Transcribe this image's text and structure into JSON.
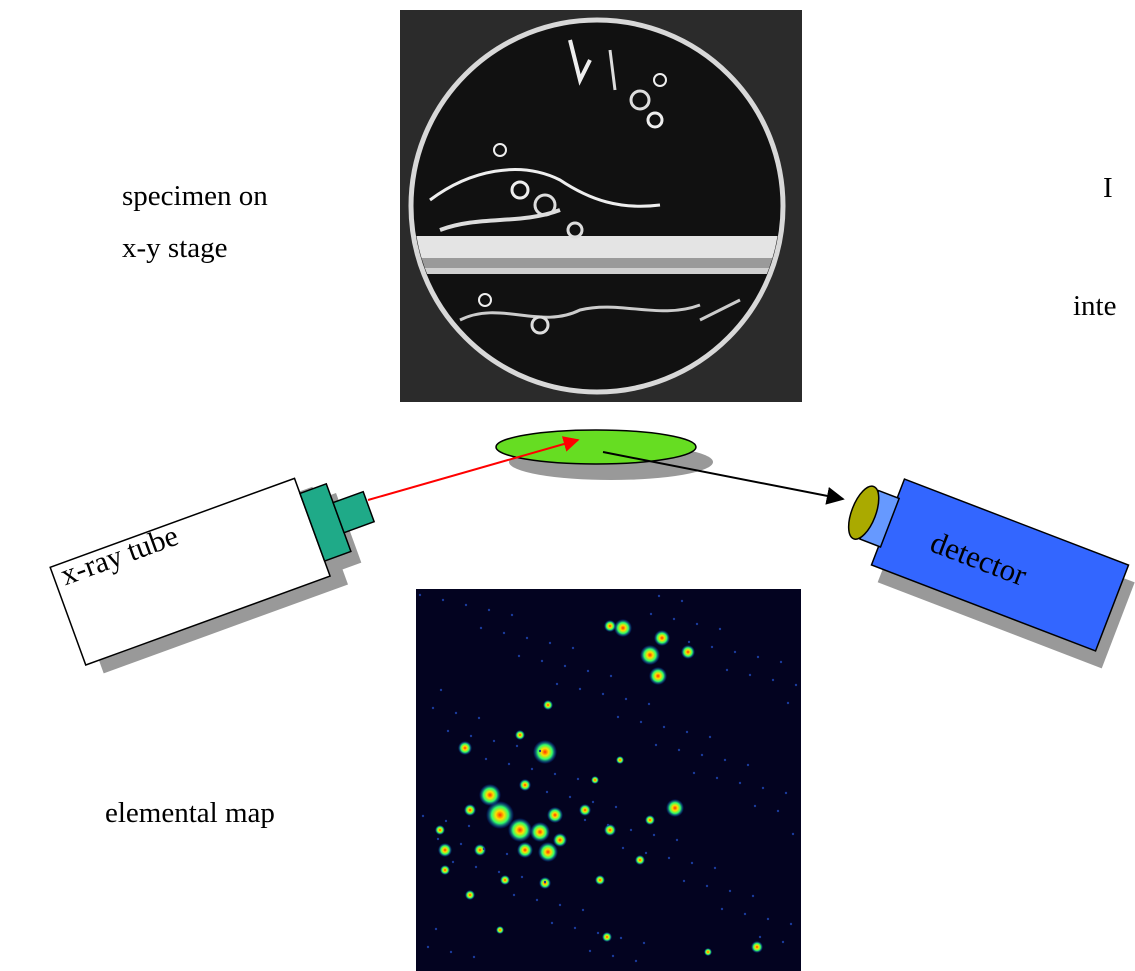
{
  "labels": {
    "specimen_line1": "specimen on",
    "specimen_line2": "x-y stage",
    "cut_right_line1": "I",
    "cut_right_line2": "inte",
    "tube": "x-ray tube",
    "detector": "detector",
    "map": "elemental map"
  },
  "colors": {
    "specimen_bg": "#2b2b2b",
    "stage_green": "#66dd22",
    "shadow_gray": "#999999",
    "tube_collimator": "#1faa88",
    "detector_body": "#3366ff",
    "detector_neck": "#6699ff",
    "detector_window": "#aaaa00",
    "incident_beam": "#ff0000",
    "diffracted_beam": "#000000",
    "map_bg": "#030320"
  },
  "icons": {
    "specimen": "specimen-photo-icon",
    "stage": "sample-stage-icon",
    "tube": "x-ray-tube-icon",
    "detector": "detector-icon",
    "map": "elemental-map-icon"
  }
}
